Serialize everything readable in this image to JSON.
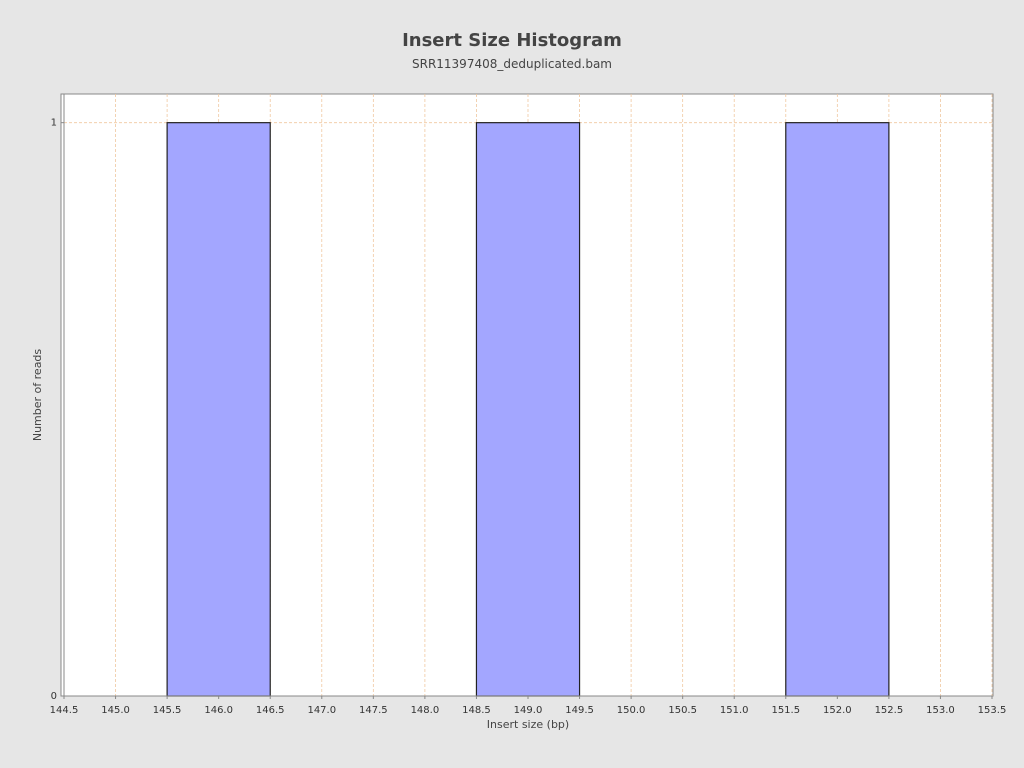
{
  "chart_data": {
    "type": "bar",
    "title": "Insert Size Histogram",
    "subtitle": "SRR11397408_deduplicated.bam",
    "xlabel": "Insert size (bp)",
    "ylabel": "Number of reads",
    "xlim": [
      144.5,
      153.5
    ],
    "ylim": [
      0,
      1.05
    ],
    "x_ticks": [
      "144.5",
      "145.0",
      "145.5",
      "146.0",
      "146.5",
      "147.0",
      "147.5",
      "148.0",
      "148.5",
      "149.0",
      "149.5",
      "150.0",
      "150.5",
      "151.0",
      "151.5",
      "152.0",
      "152.5",
      "153.0",
      "153.5"
    ],
    "y_ticks": [
      "0",
      "1"
    ],
    "bar_width": 1.0,
    "x": [
      146,
      149,
      152
    ],
    "values": [
      1,
      1,
      1
    ],
    "grid": true,
    "colors": {
      "bar_fill": "#a3a6ff",
      "bar_stroke": "#222222",
      "grid": "#f0c8a0",
      "plot_bg": "#ffffff",
      "page_bg": "#e6e6e6"
    }
  }
}
